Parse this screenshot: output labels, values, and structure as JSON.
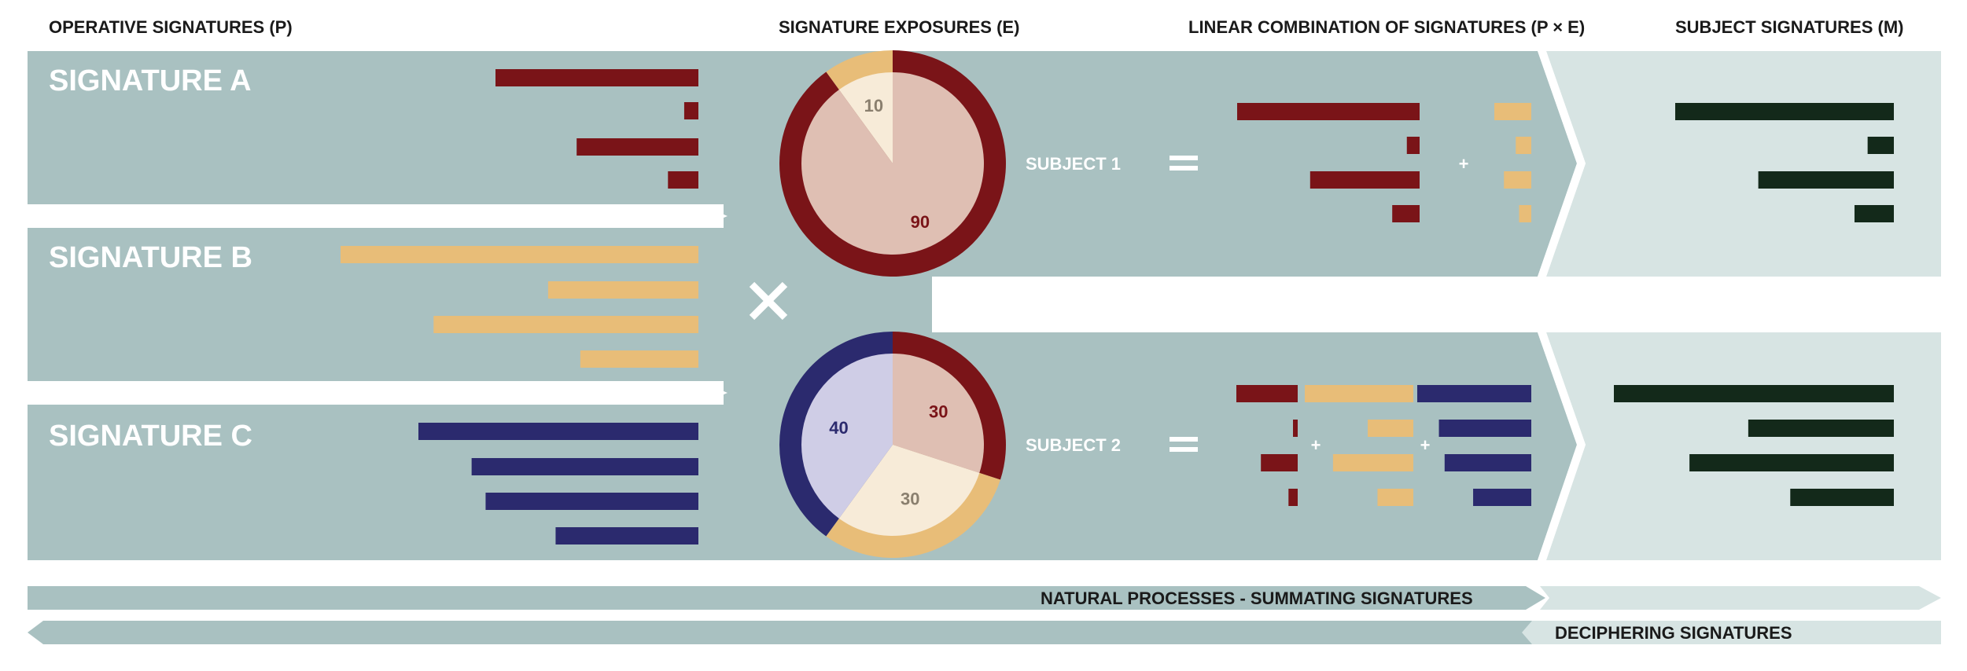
{
  "headers": {
    "operative": "OPERATIVE SIGNATURES (P)",
    "exposures": "SIGNATURE EXPOSURES (E)",
    "linear": "LINEAR COMBINATION OF SIGNATURES (P × E)",
    "subject": "SUBJECT SIGNATURES (M)"
  },
  "signatures": [
    {
      "label": "SIGNATURE A",
      "color": "#7a1418",
      "values": [
        1.0,
        0.07,
        0.6,
        0.15
      ]
    },
    {
      "label": "SIGNATURE B",
      "color": "#e8bd78",
      "values": [
        1.0,
        0.42,
        0.74,
        0.33
      ]
    },
    {
      "label": "SIGNATURE C",
      "color": "#2b2a6e",
      "values": [
        1.0,
        0.81,
        0.76,
        0.51
      ]
    }
  ],
  "operators": {
    "times": "×",
    "equals": "=",
    "plus": "+"
  },
  "subjects": [
    {
      "label": "SUBJECT 1",
      "exposures": [
        {
          "signature": "A",
          "value": 90,
          "label": "90"
        },
        {
          "signature": "B",
          "value": 10,
          "label": "10"
        }
      ],
      "output_values": [
        1.0,
        0.12,
        0.62,
        0.18
      ]
    },
    {
      "label": "SUBJECT 2",
      "exposures": [
        {
          "signature": "A",
          "value": 30,
          "label": "30"
        },
        {
          "signature": "B",
          "value": 30,
          "label": "30"
        },
        {
          "signature": "C",
          "value": 40,
          "label": "40"
        }
      ],
      "output_values": [
        1.0,
        0.52,
        0.73,
        0.37
      ]
    }
  ],
  "bands": {
    "forward": "NATURAL PROCESSES - SUMMATING SIGNATURES",
    "backward": "DECIPHERING SIGNATURES"
  },
  "colors": {
    "panel": "#a9c1c1",
    "panel_light": "#d7e4e3",
    "output": "#13291a",
    "pie_a_fill": "#dfbfb3",
    "pie_b_fill": "#f7ebd8",
    "pie_c_fill": "#cfcde6",
    "pie_b_text": "#8a7f6e"
  }
}
